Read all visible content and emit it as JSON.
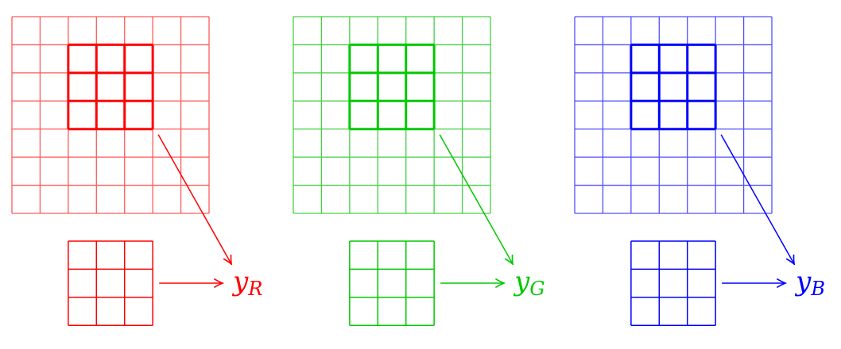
{
  "panels": [
    {
      "channel": "red",
      "label": "y",
      "subscript": "R",
      "grid_color": "#ff5a5a",
      "kernel_color": "#ff0000"
    },
    {
      "channel": "green",
      "label": "y",
      "subscript": "G",
      "grid_color": "#44d044",
      "kernel_color": "#00c800"
    },
    {
      "channel": "blue",
      "label": "y",
      "subscript": "B",
      "grid_color": "#5050ff",
      "kernel_color": "#0000ff"
    }
  ],
  "input_grid_size": 7,
  "kernel_size": 3,
  "kernel_position": {
    "row": 1,
    "col": 2
  }
}
